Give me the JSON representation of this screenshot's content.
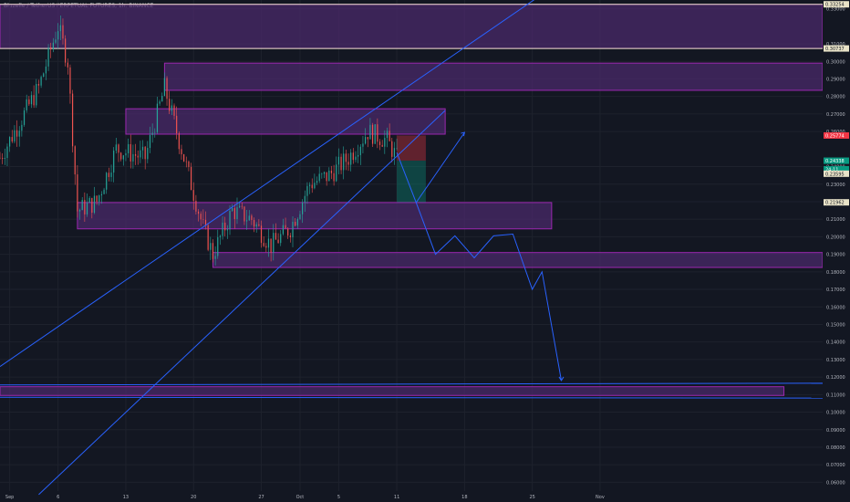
{
  "chart_data": {
    "type": "candlestick",
    "title": "Bluzelle / TetherUS PERPETUAL FUTURES, 1h, BINANCE",
    "currency": "USDT",
    "y_ticks": [
      "0.33000",
      "0.31000",
      "0.30000",
      "0.29000",
      "0.28000",
      "0.27000",
      "0.26000",
      "0.24000",
      "0.23000",
      "0.22000",
      "0.21000",
      "0.20000",
      "0.19000",
      "0.18000",
      "0.17000",
      "0.16000",
      "0.15000",
      "0.14000",
      "0.13000",
      "0.12000",
      "0.11000",
      "0.10000",
      "0.09000",
      "0.08000",
      "0.07000",
      "0.06000"
    ],
    "x_ticks": [
      "Sep",
      "6",
      "13",
      "20",
      "27",
      "Oct",
      "5",
      "11",
      "18",
      "25",
      "Nov"
    ],
    "price_labels": [
      {
        "text": "0.33254",
        "value": 0.33254,
        "bg": "#e9e3c8",
        "fg": "#131722"
      },
      {
        "text": "0.30737",
        "value": 0.30737,
        "bg": "#e9e3c8",
        "fg": "#131722"
      },
      {
        "text": "0.25774",
        "value": 0.25774,
        "bg": "#f23645",
        "fg": "#ffffff"
      },
      {
        "text": "0.24338",
        "value": 0.24338,
        "bg": "#089981",
        "fg": "#ffffff"
      },
      {
        "text": "24:11",
        "value": 0.2385,
        "bg": "#089981",
        "fg": "#ffffff"
      },
      {
        "text": "0.23595",
        "value": 0.23595,
        "bg": "#e9e3c8",
        "fg": "#131722"
      },
      {
        "text": "0.21962",
        "value": 0.21962,
        "bg": "#e9e3c8",
        "fg": "#131722"
      }
    ],
    "price_series": [
      {
        "x": "Aug 31",
        "y": 0.245
      },
      {
        "x": "Sep 2",
        "y": 0.265
      },
      {
        "x": "Sep 4",
        "y": 0.285
      },
      {
        "x": "Sep 6",
        "y": 0.32
      },
      {
        "x": "Sep 7",
        "y": 0.3
      },
      {
        "x": "Sep 8",
        "y": 0.215
      },
      {
        "x": "Sep 10",
        "y": 0.22
      },
      {
        "x": "Sep 12",
        "y": 0.25
      },
      {
        "x": "Sep 15",
        "y": 0.245
      },
      {
        "x": "Sep 17",
        "y": 0.285
      },
      {
        "x": "Sep 19",
        "y": 0.245
      },
      {
        "x": "Sep 21",
        "y": 0.205
      },
      {
        "x": "Sep 22",
        "y": 0.19
      },
      {
        "x": "Sep 24",
        "y": 0.215
      },
      {
        "x": "Sep 26",
        "y": 0.21
      },
      {
        "x": "Sep 28",
        "y": 0.195
      },
      {
        "x": "Sep 30",
        "y": 0.205
      },
      {
        "x": "Oct 2",
        "y": 0.23
      },
      {
        "x": "Oct 4",
        "y": 0.235
      },
      {
        "x": "Oct 6",
        "y": 0.245
      },
      {
        "x": "Oct 8",
        "y": 0.26
      },
      {
        "x": "Oct 10",
        "y": 0.255
      },
      {
        "x": "Oct 11",
        "y": 0.245
      }
    ],
    "zones": [
      {
        "x_start": "Aug 31",
        "x_end": "Nov 24",
        "y_low": 0.30737,
        "y_high": 0.33254
      },
      {
        "x_start": "Sep 17",
        "x_end": "Nov 24",
        "y_low": 0.2835,
        "y_high": 0.299
      },
      {
        "x_start": "Sep 13",
        "x_end": "Oct 16",
        "y_low": 0.2585,
        "y_high": 0.273
      },
      {
        "x_start": "Sep 8",
        "x_end": "Oct 27",
        "y_low": 0.2045,
        "y_high": 0.2195
      },
      {
        "x_start": "Sep 22",
        "x_end": "Nov 24",
        "y_low": 0.1825,
        "y_high": 0.191
      },
      {
        "x_start": "Aug 31",
        "x_end": "Nov 20",
        "y_low": 0.1095,
        "y_high": 0.1145
      }
    ],
    "trend_lines": [
      {
        "x1": "Aug 31",
        "y1": 0.126,
        "x2": "Oct 27",
        "y2": 0.342
      },
      {
        "x1": "Sep 4",
        "y1": 0.053,
        "x2": "Oct 16",
        "y2": 0.272
      },
      {
        "x1": "Aug 31",
        "y1": 0.1155,
        "x2": "Nov 24",
        "y2": 0.1165
      },
      {
        "x1": "Aug 31",
        "y1": 0.1085,
        "x2": "Nov 24",
        "y2": 0.108
      }
    ],
    "projection_path": [
      {
        "x": "Oct 11",
        "y": 0.248
      },
      {
        "x": "Oct 13",
        "y": 0.2195
      },
      {
        "x": "Oct 15",
        "y": 0.19
      },
      {
        "x": "Oct 17",
        "y": 0.2005
      },
      {
        "x": "Oct 19",
        "y": 0.188
      },
      {
        "x": "Oct 21",
        "y": 0.2005
      },
      {
        "x": "Oct 23",
        "y": 0.2015
      },
      {
        "x": "Oct 25",
        "y": 0.17
      },
      {
        "x": "Oct 26",
        "y": 0.18
      },
      {
        "x": "Oct 28",
        "y": 0.118
      }
    ],
    "alt_path": [
      {
        "x": "Oct 13",
        "y": 0.2195
      },
      {
        "x": "Oct 18",
        "y": 0.2595
      }
    ],
    "position_box": {
      "x_start": "Oct 11",
      "x_end": "Oct 14",
      "entry": 0.24338,
      "stop": 0.25774,
      "target": 0.21962
    },
    "ylim": [
      0.055,
      0.335
    ],
    "xlim": [
      "Aug 31",
      "Nov 24"
    ],
    "colors": {
      "background": "#131722",
      "grid": "#1e222d",
      "zone_fill": "#4a2a6a",
      "zone_border": "#9c27b0",
      "line": "#2962ff",
      "up": "#26a69a",
      "down": "#ef5350",
      "axis_text": "#b2b5be",
      "top_line": "#e9e3c8"
    }
  }
}
